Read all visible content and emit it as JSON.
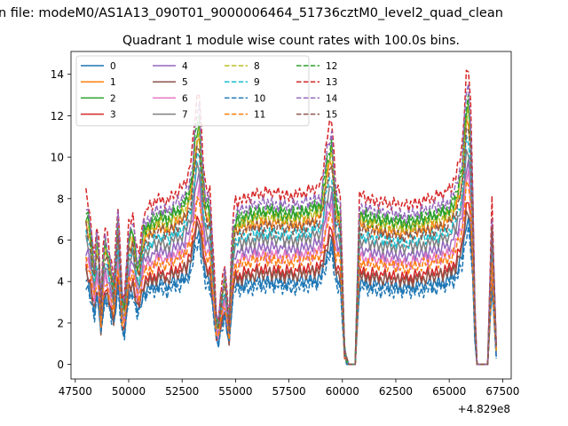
{
  "chart_data": {
    "type": "line",
    "suptitle": "n file: modeM0/AS1A13_090T01_9000006464_51736cztM0_level2_quad_clean",
    "title": "Quadrant 1 module wise count rates with 100.0s bins.",
    "xlabel": "",
    "ylabel": "",
    "x_offset_label": "+4.829e8",
    "xlim": [
      47300,
      67900
    ],
    "ylim": [
      -0.7,
      15.1
    ],
    "xticks": [
      47500,
      50000,
      52500,
      55000,
      57500,
      60000,
      62500,
      65000,
      67500
    ],
    "yticks": [
      0,
      2,
      4,
      6,
      8,
      10,
      12,
      14
    ],
    "x_range": [
      48000,
      67200
    ],
    "grid": false,
    "legend": {
      "placement": "top-left",
      "ncol": 4
    },
    "key_x": [
      48000,
      48150,
      48400,
      48550,
      48700,
      48850,
      49050,
      49300,
      49500,
      49750,
      50000,
      50200,
      50450,
      50700,
      50950,
      51200,
      51500,
      51800,
      52100,
      52400,
      52700,
      52950,
      53150,
      53300,
      53450,
      53600,
      53800,
      54000,
      54150,
      54300,
      54500,
      54700,
      54850,
      55000,
      55200,
      55500,
      56000,
      56500,
      57000,
      57500,
      58000,
      58500,
      59000,
      59300,
      59500,
      59700,
      59900,
      60100,
      60250,
      60450,
      60600,
      60800,
      60950,
      61200,
      61600,
      62000,
      62500,
      63000,
      63500,
      64000,
      64500,
      65000,
      65300,
      65600,
      65800,
      65950,
      66100,
      66250,
      66400,
      66600,
      66800,
      67000,
      67200
    ],
    "shape": [
      1.0,
      0.93,
      0.62,
      0.9,
      0.38,
      0.83,
      0.72,
      0.5,
      0.95,
      0.28,
      0.82,
      0.88,
      0.6,
      0.88,
      0.92,
      0.95,
      0.98,
      0.95,
      1.0,
      1.02,
      1.08,
      1.2,
      1.55,
      1.6,
      1.25,
      1.05,
      1.02,
      0.55,
      0.18,
      0.42,
      0.58,
      0.26,
      0.85,
      0.95,
      0.96,
      0.98,
      1.0,
      1.01,
      1.0,
      0.99,
      1.0,
      1.02,
      1.05,
      1.35,
      1.45,
      1.05,
      1.0,
      0.1,
      0.0,
      0.0,
      0.0,
      1.0,
      0.98,
      0.97,
      0.96,
      0.95,
      0.94,
      0.93,
      0.95,
      0.97,
      0.99,
      1.02,
      1.1,
      1.28,
      1.7,
      1.75,
      1.05,
      0.0,
      0.0,
      0.0,
      0.0,
      0.95,
      0.12
    ],
    "noise": [
      0.0,
      0.35,
      -0.3,
      0.2,
      -0.15,
      0.3,
      -0.25,
      0.15,
      -0.35,
      0.25,
      -0.1,
      0.3,
      -0.2,
      0.1,
      -0.3,
      0.35,
      -0.05,
      0.2,
      -0.25,
      0.15
    ],
    "series": [
      {
        "name": "0",
        "color": "#1f77b4",
        "dash": false,
        "base": 4.0
      },
      {
        "name": "1",
        "color": "#ff7f0e",
        "dash": false,
        "base": 6.8
      },
      {
        "name": "2",
        "color": "#2ca02c",
        "dash": false,
        "base": 7.2
      },
      {
        "name": "3",
        "color": "#d62728",
        "dash": false,
        "base": 4.5
      },
      {
        "name": "4",
        "color": "#9467bd",
        "dash": false,
        "base": 5.6
      },
      {
        "name": "5",
        "color": "#8c564b",
        "dash": false,
        "base": 4.3
      },
      {
        "name": "6",
        "color": "#e377c2",
        "dash": false,
        "base": 5.2
      },
      {
        "name": "7",
        "color": "#7f7f7f",
        "dash": false,
        "base": 6.0
      },
      {
        "name": "8",
        "color": "#bcbd22",
        "dash": true,
        "base": 7.0
      },
      {
        "name": "9",
        "color": "#17becf",
        "dash": true,
        "base": 6.3
      },
      {
        "name": "10",
        "color": "#1f77b4",
        "dash": true,
        "base": 3.7
      },
      {
        "name": "11",
        "color": "#ff7f0e",
        "dash": true,
        "base": 5.0
      },
      {
        "name": "12",
        "color": "#2ca02c",
        "dash": true,
        "base": 7.4
      },
      {
        "name": "13",
        "color": "#d62728",
        "dash": true,
        "base": 8.2
      },
      {
        "name": "14",
        "color": "#9467bd",
        "dash": true,
        "base": 7.7
      },
      {
        "name": "15",
        "color": "#8c564b",
        "dash": true,
        "base": 6.6
      }
    ]
  }
}
